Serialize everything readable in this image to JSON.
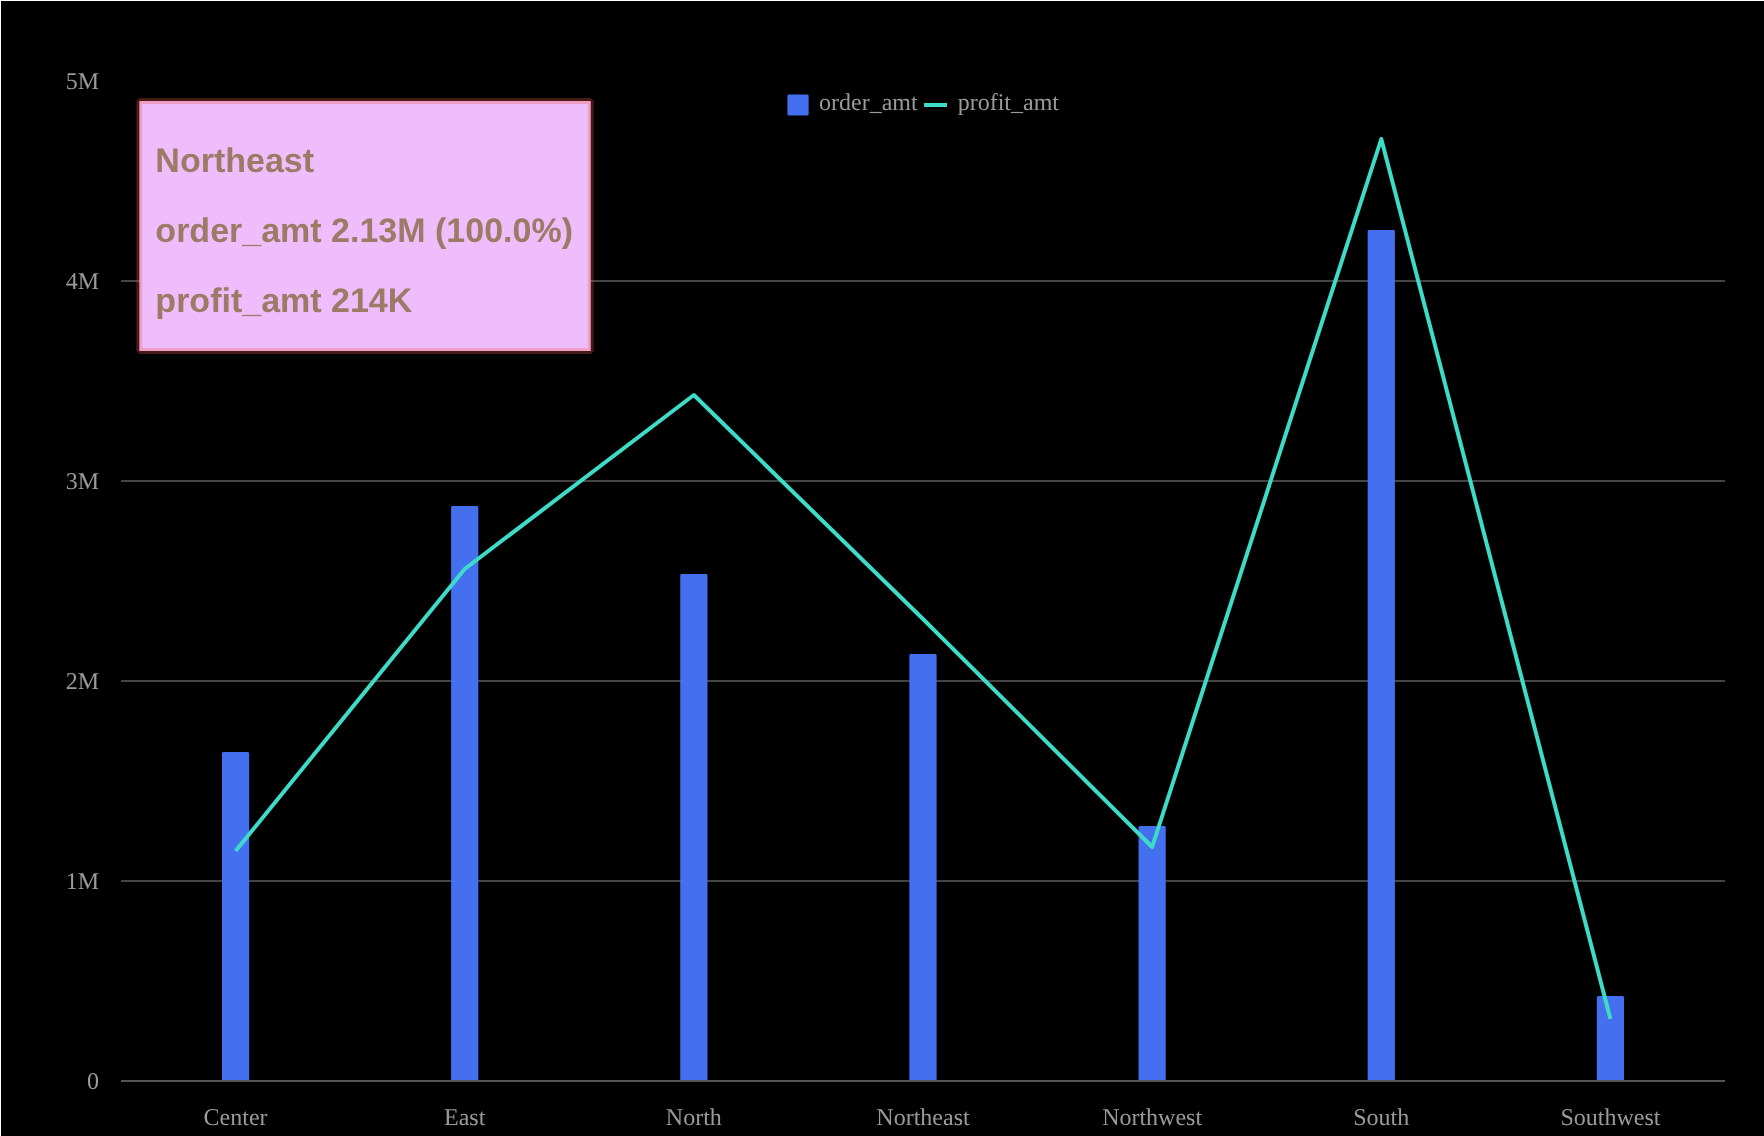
{
  "chart_data": {
    "type": "bar",
    "categories": [
      "Center",
      "East",
      "North",
      "Northeast",
      "Northwest",
      "South",
      "Southwest"
    ],
    "series": [
      {
        "name": "order_amt",
        "color": "#4470f0",
        "values": [
          1640000,
          2870000,
          2530000,
          2130000,
          1270000,
          4250000,
          420000
        ]
      },
      {
        "name": "profit_amt",
        "type": "line",
        "color": "#3ddbc8",
        "values": [
          1150000,
          2560000,
          3430000,
          2310000,
          1170000,
          4710000,
          310000
        ]
      }
    ],
    "ylim": [
      0,
      5000000
    ],
    "yticks": [
      {
        "value": 0,
        "label": "0"
      },
      {
        "value": 1000000,
        "label": "1M"
      },
      {
        "value": 2000000,
        "label": "2M"
      },
      {
        "value": 3000000,
        "label": "3M"
      },
      {
        "value": 4000000,
        "label": "4M"
      },
      {
        "value": 5000000,
        "label": "5M"
      }
    ],
    "grid": "y",
    "legend": "top",
    "annotations": [
      "Northeast",
      "order_amt   2.13M (100.0%)",
      "profit_amt   214K"
    ]
  }
}
